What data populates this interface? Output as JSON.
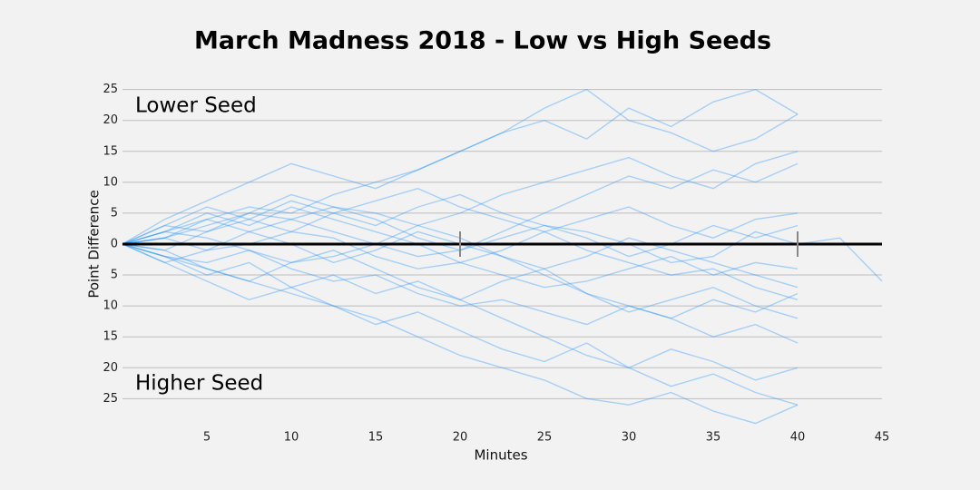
{
  "chart_data": {
    "type": "line",
    "title": "March Madness 2018 - Low vs High Seeds",
    "xlabel": "Minutes",
    "ylabel": "Point Difference",
    "annotations": [
      "Lower Seed",
      "Higher Seed"
    ],
    "x": [
      0,
      2.5,
      5,
      7.5,
      10,
      12.5,
      15,
      17.5,
      20,
      22.5,
      25,
      27.5,
      30,
      32.5,
      35,
      37.5,
      40,
      42.5,
      45
    ],
    "xlim": [
      0,
      45
    ],
    "xticks": [
      5,
      10,
      15,
      20,
      25,
      30,
      35,
      40,
      45
    ],
    "ylim": [
      -29.5,
      27
    ],
    "yticks": [
      {
        "value": 25,
        "label": "25"
      },
      {
        "value": 20,
        "label": "20"
      },
      {
        "value": 15,
        "label": "15"
      },
      {
        "value": 10,
        "label": "10"
      },
      {
        "value": 5,
        "label": "5"
      },
      {
        "value": 0,
        "label": "0"
      },
      {
        "value": -5,
        "label": "5"
      },
      {
        "value": -10,
        "label": "10"
      },
      {
        "value": -15,
        "label": "15"
      },
      {
        "value": -20,
        "label": "20"
      },
      {
        "value": -25,
        "label": "25"
      }
    ],
    "period_marks": [
      20,
      40
    ],
    "grid": true,
    "zero_line": true,
    "line_opacity": 0.35,
    "series": [
      {
        "color": "#1e90ff",
        "values": [
          0,
          2,
          4,
          6,
          5,
          8,
          10,
          12,
          15,
          18,
          22,
          25,
          20,
          18,
          15,
          17,
          21,
          null,
          null
        ]
      },
      {
        "color": "#1e90ff",
        "values": [
          0,
          -2,
          -4,
          -6,
          -8,
          -10,
          -12,
          -15,
          -18,
          -20,
          -22,
          -25,
          -26,
          -24,
          -27,
          -29,
          -26,
          null,
          null
        ]
      },
      {
        "color": "#1e90ff",
        "values": [
          0,
          1,
          3,
          5,
          4,
          2,
          0,
          -2,
          -1,
          1,
          3,
          2,
          0,
          -3,
          -2,
          2,
          0,
          1,
          -6
        ]
      },
      {
        "color": "#1e90ff",
        "values": [
          0,
          3,
          6,
          4,
          2,
          5,
          7,
          9,
          6,
          4,
          2,
          -1,
          -3,
          -5,
          -4,
          -7,
          -9,
          null,
          null
        ]
      },
      {
        "color": "#1e90ff",
        "values": [
          0,
          -3,
          -1,
          2,
          4,
          6,
          5,
          3,
          1,
          -2,
          -5,
          -8,
          -10,
          -12,
          -15,
          -13,
          -16,
          null,
          null
        ]
      },
      {
        "color": "#1e90ff",
        "values": [
          0,
          2,
          1,
          -1,
          -3,
          -2,
          0,
          3,
          5,
          8,
          10,
          12,
          14,
          11,
          9,
          13,
          15,
          null,
          null
        ]
      },
      {
        "color": "#1e90ff",
        "values": [
          0,
          -1,
          -4,
          -6,
          -3,
          -1,
          -4,
          -7,
          -9,
          -6,
          -4,
          -8,
          -11,
          -9,
          -7,
          -10,
          -12,
          null,
          null
        ]
      },
      {
        "color": "#1e90ff",
        "values": [
          0,
          4,
          7,
          10,
          13,
          11,
          9,
          12,
          15,
          18,
          20,
          17,
          22,
          19,
          23,
          25,
          21,
          null,
          null
        ]
      },
      {
        "color": "#1e90ff",
        "values": [
          0,
          -2,
          -5,
          -3,
          -7,
          -10,
          -13,
          -11,
          -14,
          -17,
          -19,
          -16,
          -20,
          -23,
          -21,
          -24,
          -26,
          null,
          null
        ]
      },
      {
        "color": "#1e90ff",
        "values": [
          0,
          1,
          -1,
          0,
          2,
          1,
          -2,
          -4,
          -3,
          -5,
          -7,
          -6,
          -4,
          -2,
          -5,
          -3,
          -4,
          null,
          null
        ]
      },
      {
        "color": "#1e90ff",
        "values": [
          0,
          2,
          5,
          3,
          6,
          4,
          2,
          0,
          -3,
          -1,
          2,
          4,
          6,
          3,
          1,
          4,
          5,
          null,
          null
        ]
      },
      {
        "color": "#1e90ff",
        "values": [
          0,
          -1,
          2,
          4,
          7,
          5,
          3,
          6,
          8,
          5,
          3,
          1,
          -2,
          0,
          3,
          1,
          3,
          null,
          null
        ]
      },
      {
        "color": "#1e90ff",
        "values": [
          0,
          -3,
          -6,
          -9,
          -7,
          -5,
          -8,
          -6,
          -9,
          -12,
          -15,
          -18,
          -20,
          -17,
          -19,
          -22,
          -20,
          null,
          null
        ]
      },
      {
        "color": "#1e90ff",
        "values": [
          0,
          3,
          2,
          5,
          8,
          6,
          4,
          1,
          -1,
          2,
          5,
          8,
          11,
          9,
          12,
          10,
          13,
          null,
          null
        ]
      },
      {
        "color": "#1e90ff",
        "values": [
          0,
          -2,
          -3,
          -1,
          -4,
          -6,
          -5,
          -8,
          -10,
          -9,
          -11,
          -13,
          -10,
          -12,
          -9,
          -11,
          -8,
          null,
          null
        ]
      },
      {
        "color": "#1e90ff",
        "values": [
          0,
          1,
          4,
          2,
          0,
          -3,
          -1,
          2,
          0,
          -2,
          -4,
          -2,
          1,
          -1,
          -3,
          -5,
          -7,
          null,
          null
        ]
      }
    ]
  }
}
